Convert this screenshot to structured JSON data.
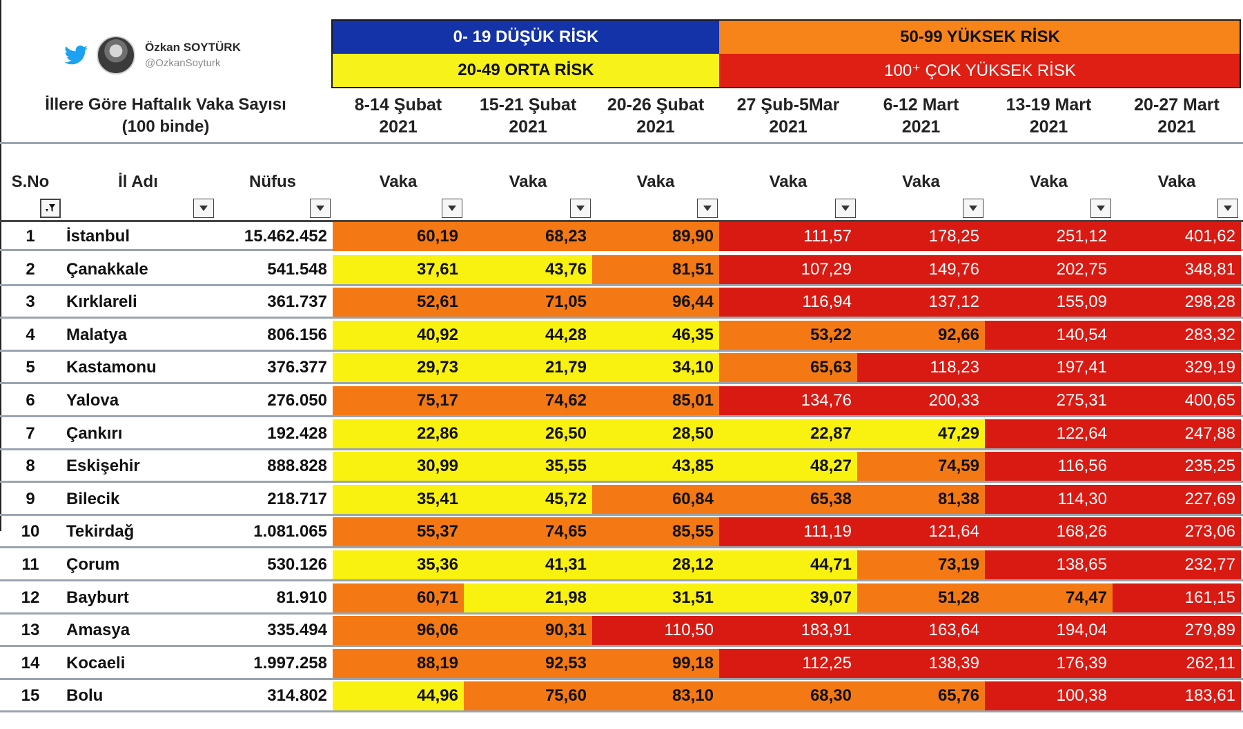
{
  "author": {
    "name": "Özkan SOYTÜRK",
    "handle": "@OzkanSoyturk"
  },
  "legend": {
    "low": "0- 19 DÜŞÜK RİSK",
    "mid": "20-49 ORTA RİSK",
    "high": "50-99 YÜKSEK RİSK",
    "very_high": "100⁺ ÇOK YÜKSEK RİSK"
  },
  "colors": {
    "low": "#1433a8",
    "mid": "#f9f10f",
    "high": "#f47914",
    "very_high": "#d91a13"
  },
  "title": {
    "line1": "İllere Göre Haftalık Vaka Sayısı",
    "line2": "(100 binde)"
  },
  "weeks": [
    {
      "line1": "8-14 Şubat",
      "line2": "2021"
    },
    {
      "line1": "15-21 Şubat",
      "line2": "2021"
    },
    {
      "line1": "20-26 Şubat",
      "line2": "2021"
    },
    {
      "line1": "27 Şub-5Mar",
      "line2": "2021"
    },
    {
      "line1": "6-12 Mart",
      "line2": "2021"
    },
    {
      "line1": "13-19 Mart",
      "line2": "2021"
    },
    {
      "line1": "20-27 Mart",
      "line2": "2021"
    }
  ],
  "columns": {
    "no": "S.No",
    "name": "İl Adı",
    "population": "Nüfus",
    "value": "Vaka"
  },
  "rows": [
    {
      "no": "1",
      "name": "İstanbul",
      "population": "15.462.452",
      "values": [
        "60,19",
        "68,23",
        "89,90",
        "111,57",
        "178,25",
        "251,12",
        "401,62"
      ]
    },
    {
      "no": "2",
      "name": "Çanakkale",
      "population": "541.548",
      "values": [
        "37,61",
        "43,76",
        "81,51",
        "107,29",
        "149,76",
        "202,75",
        "348,81"
      ]
    },
    {
      "no": "3",
      "name": "Kırklareli",
      "population": "361.737",
      "values": [
        "52,61",
        "71,05",
        "96,44",
        "116,94",
        "137,12",
        "155,09",
        "298,28"
      ]
    },
    {
      "no": "4",
      "name": "Malatya",
      "population": "806.156",
      "values": [
        "40,92",
        "44,28",
        "46,35",
        "53,22",
        "92,66",
        "140,54",
        "283,32"
      ]
    },
    {
      "no": "5",
      "name": "Kastamonu",
      "population": "376.377",
      "values": [
        "29,73",
        "21,79",
        "34,10",
        "65,63",
        "118,23",
        "197,41",
        "329,19"
      ]
    },
    {
      "no": "6",
      "name": "Yalova",
      "population": "276.050",
      "values": [
        "75,17",
        "74,62",
        "85,01",
        "134,76",
        "200,33",
        "275,31",
        "400,65"
      ]
    },
    {
      "no": "7",
      "name": "Çankırı",
      "population": "192.428",
      "values": [
        "22,86",
        "26,50",
        "28,50",
        "22,87",
        "47,29",
        "122,64",
        "247,88"
      ]
    },
    {
      "no": "8",
      "name": "Eskişehir",
      "population": "888.828",
      "values": [
        "30,99",
        "35,55",
        "43,85",
        "48,27",
        "74,59",
        "116,56",
        "235,25"
      ]
    },
    {
      "no": "9",
      "name": "Bilecik",
      "population": "218.717",
      "values": [
        "35,41",
        "45,72",
        "60,84",
        "65,38",
        "81,38",
        "114,30",
        "227,69"
      ]
    },
    {
      "no": "10",
      "name": "Tekirdağ",
      "population": "1.081.065",
      "values": [
        "55,37",
        "74,65",
        "85,55",
        "111,19",
        "121,64",
        "168,26",
        "273,06"
      ]
    },
    {
      "no": "11",
      "name": "Çorum",
      "population": "530.126",
      "values": [
        "35,36",
        "41,31",
        "28,12",
        "44,71",
        "73,19",
        "138,65",
        "232,77"
      ]
    },
    {
      "no": "12",
      "name": "Bayburt",
      "population": "81.910",
      "values": [
        "60,71",
        "21,98",
        "31,51",
        "39,07",
        "51,28",
        "74,47",
        "161,15"
      ]
    },
    {
      "no": "13",
      "name": "Amasya",
      "population": "335.494",
      "values": [
        "96,06",
        "90,31",
        "110,50",
        "183,91",
        "163,64",
        "194,04",
        "279,89"
      ]
    },
    {
      "no": "14",
      "name": "Kocaeli",
      "population": "1.997.258",
      "values": [
        "88,19",
        "92,53",
        "99,18",
        "112,25",
        "138,39",
        "176,39",
        "262,11"
      ]
    },
    {
      "no": "15",
      "name": "Bolu",
      "population": "314.802",
      "values": [
        "44,96",
        "75,60",
        "83,10",
        "68,30",
        "65,76",
        "100,38",
        "183,61"
      ]
    }
  ]
}
